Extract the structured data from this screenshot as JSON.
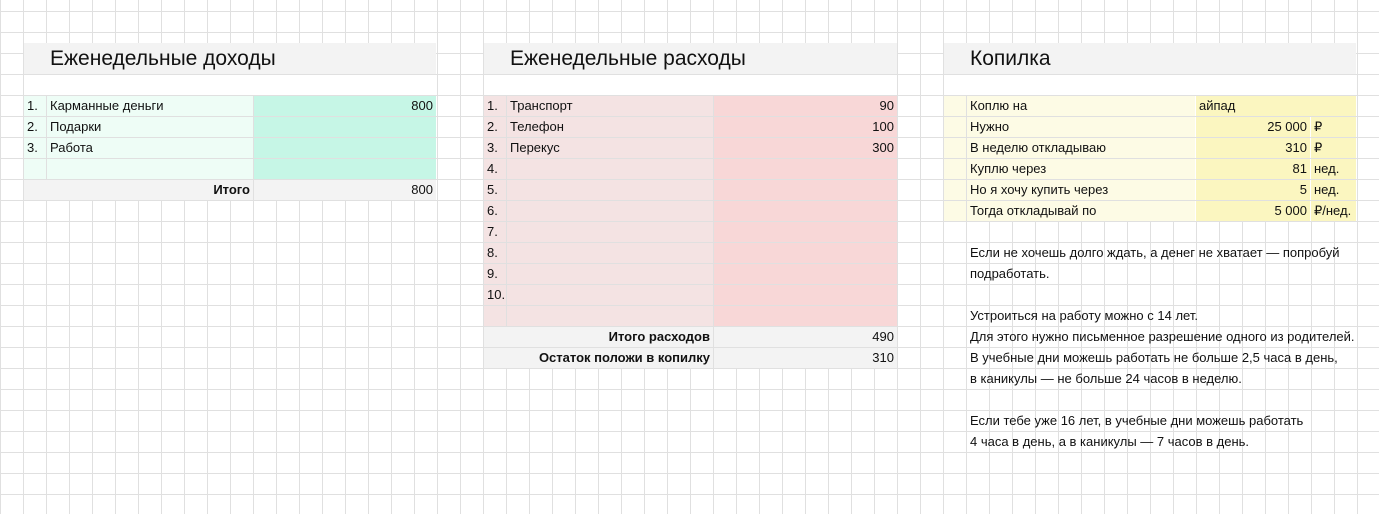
{
  "income": {
    "title": "Еженедельные доходы",
    "items": [
      {
        "number": "1.",
        "label": "Карманные деньги",
        "amount": 800
      },
      {
        "number": "2.",
        "label": "Подарки"
      },
      {
        "number": "3.",
        "label": "Работа"
      }
    ],
    "total": {
      "label": "Итого",
      "value": 800
    }
  },
  "expenses": {
    "title": "Еженедельные расходы",
    "items": [
      {
        "number": "1.",
        "label": "Транспорт",
        "amount": 90
      },
      {
        "number": "2.",
        "label": "Телефон",
        "amount": 100
      },
      {
        "number": "3.",
        "label": "Перекус",
        "amount": 300
      },
      {
        "number": "4."
      },
      {
        "number": "5."
      },
      {
        "number": "6."
      },
      {
        "number": "7."
      },
      {
        "number": "8."
      },
      {
        "number": "9."
      },
      {
        "number": "10."
      }
    ],
    "totals": [
      {
        "label": "Итого расходов",
        "value": 490
      },
      {
        "label": "Остаток положи в копилку",
        "value": 310
      }
    ]
  },
  "savings": {
    "title": "Копилка",
    "items": [
      {
        "label": "Коплю на",
        "value": "айпад"
      },
      {
        "label": "Нужно",
        "value": "25 000",
        "unit": "₽"
      },
      {
        "label": "В неделю откладываю",
        "value": "310",
        "unit": "₽"
      },
      {
        "label": "Куплю через",
        "value": "81",
        "unit": "нед."
      },
      {
        "label": "Но я хочу купить через",
        "value": "5",
        "unit": "нед."
      },
      {
        "label": "Тогда откладывай по",
        "value": "5 000",
        "unit": "₽/нед."
      }
    ],
    "notes": [
      [
        "Если не хочешь долго ждать, а денег не хватает — попробуй",
        "подработать."
      ],
      [
        "Устроиться на работу можно с 14 лет.",
        "Для этого нужно письменное разрешение одного из родителей.",
        "В учебные дни можешь работать не больше 2,5 часа в день,",
        "в каникулы — не больше 24 часов в неделю."
      ],
      [
        "Если тебе уже 16 лет, в учебные дни можешь работать",
        "4 часа в день, а в каникулы — 7 часов в день."
      ]
    ]
  }
}
